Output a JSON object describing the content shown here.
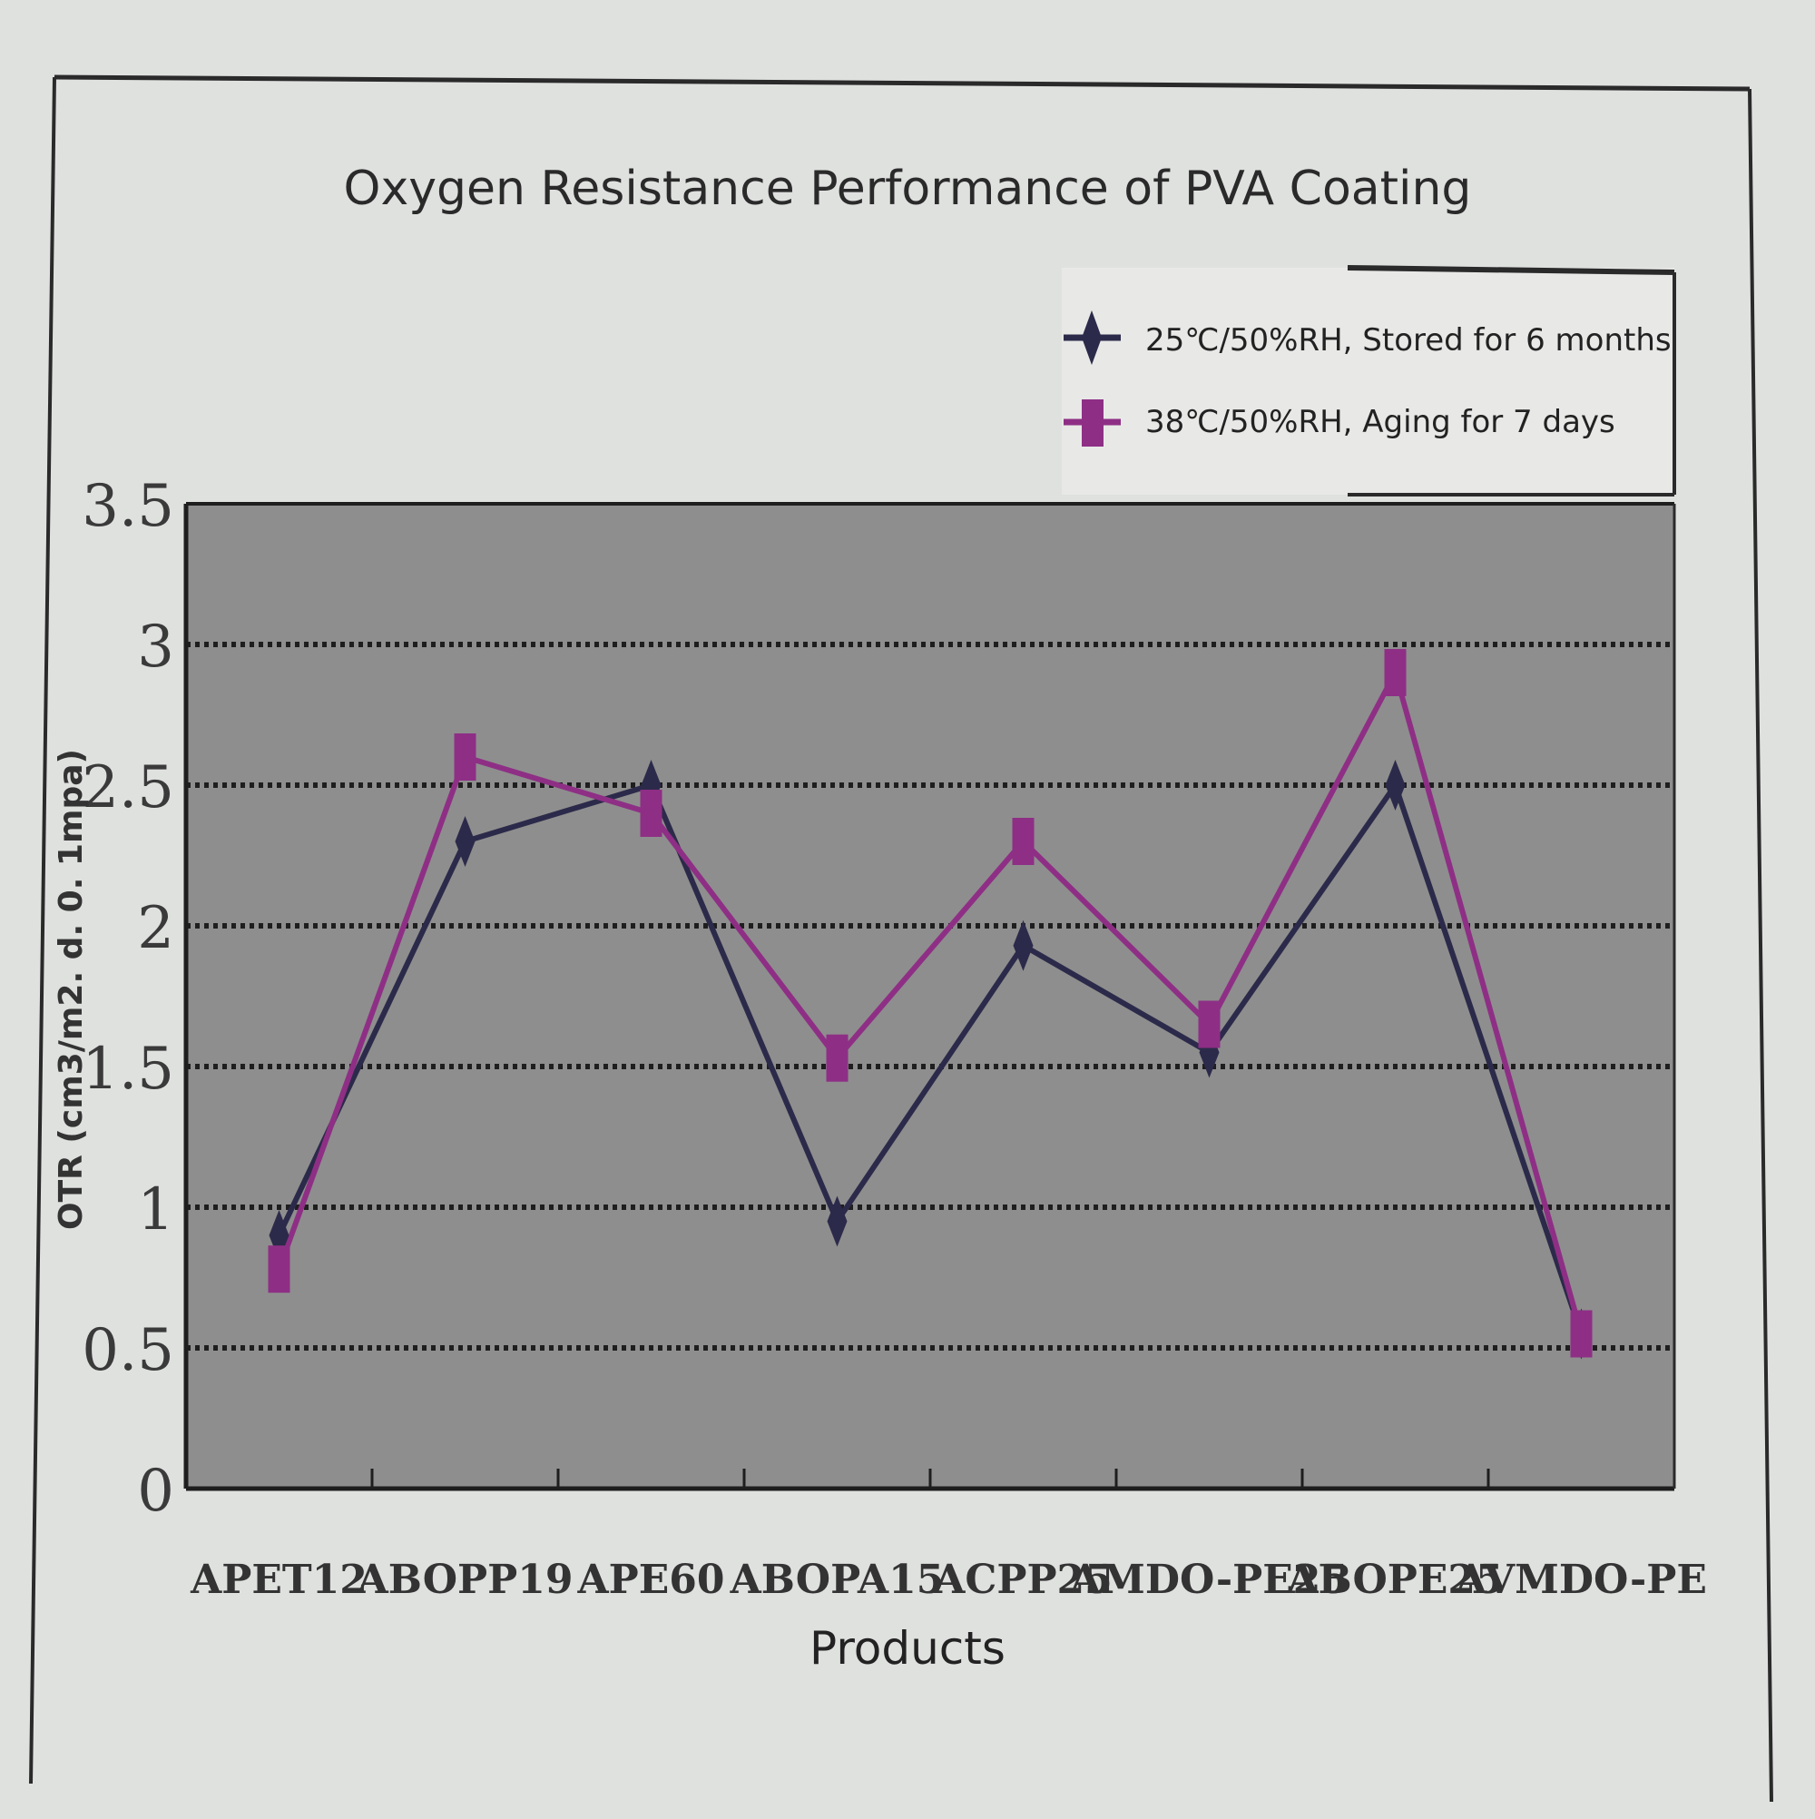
{
  "chart_data": {
    "type": "line",
    "title": "Oxygen Resistance Performance of PVA Coating",
    "xlabel": "Products",
    "ylabel": "OTR (cm3/m2. d. 0. 1mpa)",
    "categories": [
      "APET12",
      "ABOPP19",
      "APE60",
      "ABOPA15",
      "ACPP25",
      "AMDO-PE25",
      "ABOPE25",
      "AVMDO-PE"
    ],
    "ylim": [
      0,
      3.5
    ],
    "yticks": [
      "0",
      "0.5",
      "1",
      "1.5",
      "2",
      "2.5",
      "3",
      "3.5"
    ],
    "grid": true,
    "legend_position": "top-right",
    "plot_background": "#8e8e8e",
    "series": [
      {
        "name": "25℃/50%RH, Stored for 6 months",
        "color": "#2c2a4a",
        "marker": "diamond",
        "values": [
          0.9,
          2.3,
          2.5,
          0.95,
          1.93,
          1.55,
          2.5,
          0.55
        ]
      },
      {
        "name": "38℃/50%RH, Aging for 7 days",
        "color": "#8e2f85",
        "marker": "square",
        "values": [
          0.78,
          2.6,
          2.4,
          1.53,
          2.3,
          1.65,
          2.9,
          0.55
        ]
      }
    ]
  }
}
